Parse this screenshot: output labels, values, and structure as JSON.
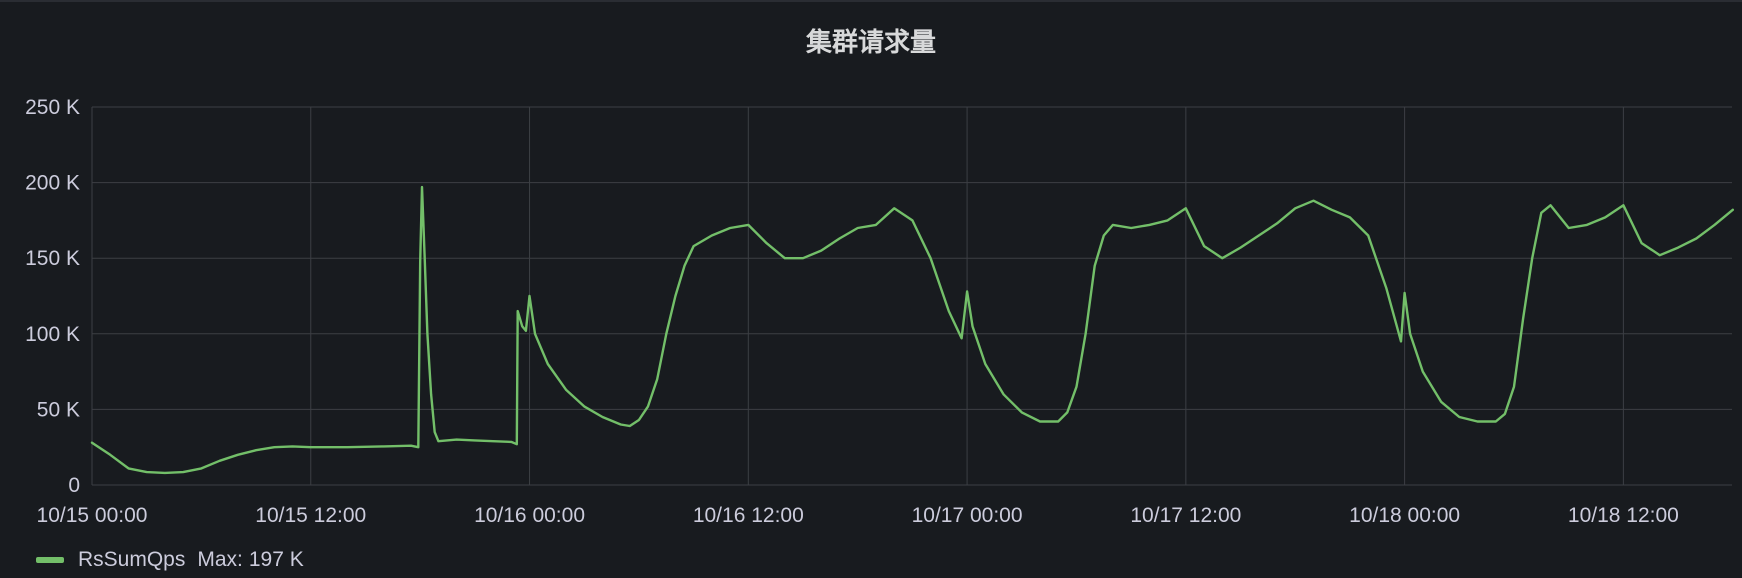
{
  "panel": {
    "title": "集群请求量"
  },
  "legend": {
    "series_name": "RsSumQps",
    "max_label": "Max:",
    "max_value": "197 K",
    "color": "#73bf69"
  },
  "colors": {
    "background": "#181b1f",
    "grid": "#3c3f44",
    "text": "#ccccdc",
    "series": "#73bf69"
  },
  "chart_data": {
    "type": "line",
    "title": "集群请求量",
    "xlabel": "",
    "ylabel": "",
    "x_unit": "hours since 10/15 00:00",
    "xlim": [
      0,
      90
    ],
    "ylim": [
      0,
      250000
    ],
    "y_ticks": [
      {
        "value": 0,
        "label": "0"
      },
      {
        "value": 50000,
        "label": "50 K"
      },
      {
        "value": 100000,
        "label": "100 K"
      },
      {
        "value": 150000,
        "label": "150 K"
      },
      {
        "value": 200000,
        "label": "200 K"
      },
      {
        "value": 250000,
        "label": "250 K"
      }
    ],
    "x_ticks": [
      {
        "value": 0,
        "label": "10/15 00:00"
      },
      {
        "value": 12,
        "label": "10/15 12:00"
      },
      {
        "value": 24,
        "label": "10/16 00:00"
      },
      {
        "value": 36,
        "label": "10/16 12:00"
      },
      {
        "value": 48,
        "label": "10/17 00:00"
      },
      {
        "value": 60,
        "label": "10/17 12:00"
      },
      {
        "value": 72,
        "label": "10/18 00:00"
      },
      {
        "value": 84,
        "label": "10/18 12:00"
      }
    ],
    "grid": true,
    "legend_position": "bottom-left",
    "series": [
      {
        "name": "RsSumQps",
        "color": "#73bf69",
        "points": [
          [
            0,
            28000
          ],
          [
            1,
            20000
          ],
          [
            2,
            11000
          ],
          [
            3,
            8500
          ],
          [
            4,
            8000
          ],
          [
            5,
            8500
          ],
          [
            6,
            11000
          ],
          [
            7,
            16000
          ],
          [
            8,
            20000
          ],
          [
            9,
            23000
          ],
          [
            10,
            25000
          ],
          [
            11,
            25500
          ],
          [
            12,
            25000
          ],
          [
            14,
            25000
          ],
          [
            16,
            25500
          ],
          [
            17.5,
            26000
          ],
          [
            17.9,
            25000
          ],
          [
            18.0,
            148000
          ],
          [
            18.1,
            197000
          ],
          [
            18.25,
            150000
          ],
          [
            18.4,
            100000
          ],
          [
            18.6,
            60000
          ],
          [
            18.8,
            35000
          ],
          [
            19.0,
            29000
          ],
          [
            20,
            30000
          ],
          [
            21,
            29500
          ],
          [
            22,
            29000
          ],
          [
            23,
            28500
          ],
          [
            23.3,
            27000
          ],
          [
            23.35,
            115000
          ],
          [
            23.6,
            105000
          ],
          [
            23.8,
            102000
          ],
          [
            24.0,
            125000
          ],
          [
            24.3,
            100000
          ],
          [
            25,
            80000
          ],
          [
            26,
            63000
          ],
          [
            27,
            52000
          ],
          [
            28,
            45000
          ],
          [
            29,
            40000
          ],
          [
            29.5,
            39000
          ],
          [
            30,
            43000
          ],
          [
            30.5,
            52000
          ],
          [
            31,
            70000
          ],
          [
            31.5,
            100000
          ],
          [
            32,
            125000
          ],
          [
            32.5,
            145000
          ],
          [
            33,
            158000
          ],
          [
            34,
            165000
          ],
          [
            35,
            170000
          ],
          [
            36,
            172000
          ],
          [
            37,
            160000
          ],
          [
            38,
            150000
          ],
          [
            39,
            150000
          ],
          [
            40,
            155000
          ],
          [
            41,
            163000
          ],
          [
            42,
            170000
          ],
          [
            43,
            172000
          ],
          [
            44,
            183000
          ],
          [
            45,
            175000
          ],
          [
            46,
            150000
          ],
          [
            47,
            115000
          ],
          [
            47.7,
            97000
          ],
          [
            48.0,
            128000
          ],
          [
            48.3,
            105000
          ],
          [
            49,
            80000
          ],
          [
            50,
            60000
          ],
          [
            51,
            48000
          ],
          [
            52,
            42000
          ],
          [
            53,
            42000
          ],
          [
            53.5,
            48000
          ],
          [
            54,
            65000
          ],
          [
            54.5,
            100000
          ],
          [
            55,
            145000
          ],
          [
            55.5,
            165000
          ],
          [
            56,
            172000
          ],
          [
            57,
            170000
          ],
          [
            58,
            172000
          ],
          [
            59,
            175000
          ],
          [
            60,
            183000
          ],
          [
            61,
            158000
          ],
          [
            62,
            150000
          ],
          [
            63,
            157000
          ],
          [
            64,
            165000
          ],
          [
            65,
            173000
          ],
          [
            66,
            183000
          ],
          [
            67,
            188000
          ],
          [
            68,
            182000
          ],
          [
            69,
            177000
          ],
          [
            70,
            165000
          ],
          [
            71,
            130000
          ],
          [
            71.8,
            95000
          ],
          [
            72.0,
            127000
          ],
          [
            72.3,
            100000
          ],
          [
            73,
            75000
          ],
          [
            74,
            55000
          ],
          [
            75,
            45000
          ],
          [
            76,
            42000
          ],
          [
            77,
            42000
          ],
          [
            77.5,
            47000
          ],
          [
            78,
            65000
          ],
          [
            78.5,
            110000
          ],
          [
            79,
            150000
          ],
          [
            79.5,
            180000
          ],
          [
            80,
            185000
          ],
          [
            81,
            170000
          ],
          [
            82,
            172000
          ],
          [
            83,
            177000
          ],
          [
            84,
            185000
          ],
          [
            85,
            160000
          ],
          [
            86,
            152000
          ],
          [
            87,
            157000
          ],
          [
            88,
            163000
          ],
          [
            89,
            172000
          ],
          [
            90,
            182000
          ]
        ]
      }
    ]
  }
}
